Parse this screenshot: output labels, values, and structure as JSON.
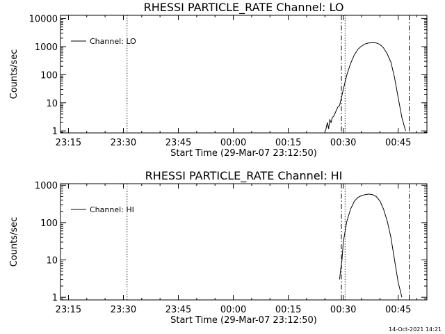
{
  "footer": {
    "timestamp": "14-Oct-2021 14:21"
  },
  "chart_data": [
    {
      "type": "line",
      "title": "RHESSI PARTICLE_RATE Channel: LO",
      "xlabel": "Start Time (29-Mar-07 23:12:50)",
      "ylabel": "Counts/sec",
      "yscale": "log",
      "x_ticks": [
        "23:15",
        "23:30",
        "23:45",
        "00:00",
        "00:15",
        "00:30",
        "00:45"
      ],
      "xlim": [
        "23:12:50",
        "00:52:50"
      ],
      "y_ticks": [
        "1",
        "10",
        "100",
        "1000",
        "10000"
      ],
      "ylim": [
        0.85,
        13000
      ],
      "legend": {
        "position": "top-left",
        "entries": [
          "Channel: LO"
        ]
      },
      "grid": false,
      "vlines": [
        {
          "x": "23:31:00",
          "style": "dotted"
        },
        {
          "x": "00:29:30",
          "style": "dash-dot"
        },
        {
          "x": "00:30:30",
          "style": "dotted"
        },
        {
          "x": "00:48:00",
          "style": "dash-dot"
        }
      ],
      "series": [
        {
          "name": "Channel: LO",
          "x": [
            "00:25:10",
            "00:25:40",
            "00:26:00",
            "00:26:20",
            "00:26:40",
            "00:27:00",
            "00:27:30",
            "00:28:00",
            "00:28:30",
            "00:29:00",
            "00:29:30",
            "00:30:00",
            "00:31:00",
            "00:32:00",
            "00:33:00",
            "00:34:00",
            "00:35:00",
            "00:36:00",
            "00:37:00",
            "00:38:00",
            "00:39:00",
            "00:40:00",
            "00:41:00",
            "00:42:00",
            "00:43:00",
            "00:44:00",
            "00:45:00",
            "00:46:00",
            "00:47:00"
          ],
          "values": [
            1,
            2,
            1.2,
            2.5,
            2,
            3,
            3.5,
            5,
            7,
            8,
            15,
            30,
            100,
            250,
            500,
            800,
            1050,
            1250,
            1350,
            1400,
            1350,
            1200,
            900,
            550,
            280,
            80,
            15,
            3,
            1
          ]
        }
      ]
    },
    {
      "type": "line",
      "title": "RHESSI PARTICLE_RATE Channel: HI",
      "xlabel": "Start Time (29-Mar-07 23:12:50)",
      "ylabel": "Counts/sec",
      "yscale": "log",
      "x_ticks": [
        "23:15",
        "23:30",
        "23:45",
        "00:00",
        "00:15",
        "00:30",
        "00:45"
      ],
      "xlim": [
        "23:12:50",
        "00:52:50"
      ],
      "y_ticks": [
        "1",
        "10",
        "100",
        "1000"
      ],
      "ylim": [
        0.85,
        1100
      ],
      "legend": {
        "position": "top-left",
        "entries": [
          "Channel: HI"
        ]
      },
      "grid": false,
      "vlines": [
        {
          "x": "23:31:00",
          "style": "dotted"
        },
        {
          "x": "00:29:30",
          "style": "dash-dot"
        },
        {
          "x": "00:30:30",
          "style": "dotted"
        },
        {
          "x": "00:48:00",
          "style": "dash-dot"
        }
      ],
      "series": [
        {
          "name": "Channel: HI",
          "x": [
            "00:29:00",
            "00:29:20",
            "00:29:40",
            "00:30:00",
            "00:31:00",
            "00:32:00",
            "00:33:00",
            "00:34:00",
            "00:35:00",
            "00:36:00",
            "00:37:00",
            "00:38:00",
            "00:39:00",
            "00:40:00",
            "00:41:00",
            "00:42:00",
            "00:43:00",
            "00:44:00",
            "00:45:00",
            "00:46:00"
          ],
          "values": [
            3,
            6,
            10,
            30,
            110,
            230,
            370,
            470,
            530,
            560,
            580,
            560,
            500,
            380,
            230,
            110,
            40,
            10,
            2.5,
            1
          ]
        }
      ]
    }
  ]
}
